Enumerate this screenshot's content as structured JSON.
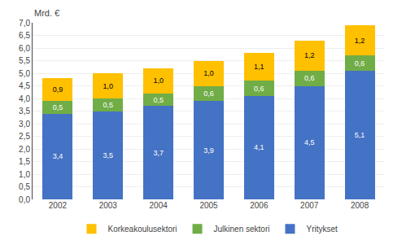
{
  "chart_data": {
    "type": "bar",
    "stacked": true,
    "ylabel": "Mrd. €",
    "categories": [
      "2002",
      "2003",
      "2004",
      "2005",
      "2006",
      "2007",
      "2008"
    ],
    "series": [
      {
        "name": "Yritykset",
        "color": "#4472C4",
        "values": [
          3.4,
          3.5,
          3.7,
          3.9,
          4.1,
          4.5,
          5.1
        ],
        "value_labels": [
          "3,4",
          "3,5",
          "3,7",
          "3,9",
          "4,1",
          "4,5",
          "5,1"
        ]
      },
      {
        "name": "Julkinen sektori",
        "color": "#70AD47",
        "values": [
          0.5,
          0.5,
          0.5,
          0.6,
          0.6,
          0.6,
          0.6
        ],
        "value_labels": [
          "0,5",
          "0,5",
          "0,5",
          "0,6",
          "0,6",
          "0,6",
          "0,6"
        ]
      },
      {
        "name": "Korkeakoulusektori",
        "color": "#FFC000",
        "values": [
          0.9,
          1.0,
          1.0,
          1.0,
          1.1,
          1.2,
          1.2
        ],
        "value_labels": [
          "0,9",
          "1,0",
          "1,0",
          "1,0",
          "1,1",
          "1,2",
          "1,2"
        ]
      }
    ],
    "data_labels": true,
    "ylim": [
      0,
      7.0
    ],
    "yticks": [
      {
        "value": 0.0,
        "label": "0,0"
      },
      {
        "value": 0.5,
        "label": "0,5"
      },
      {
        "value": 1.0,
        "label": "1,0"
      },
      {
        "value": 1.5,
        "label": "1,5"
      },
      {
        "value": 2.0,
        "label": "2,0"
      },
      {
        "value": 2.5,
        "label": "2,5"
      },
      {
        "value": 3.0,
        "label": "3,0"
      },
      {
        "value": 3.5,
        "label": "3,5"
      },
      {
        "value": 4.0,
        "label": "4,0"
      },
      {
        "value": 4.5,
        "label": "4,5"
      },
      {
        "value": 5.0,
        "label": "5,0"
      },
      {
        "value": 5.5,
        "label": "5,5"
      },
      {
        "value": 6.0,
        "label": "6,0"
      },
      {
        "value": 6.5,
        "label": "6,5"
      },
      {
        "value": 7.0,
        "label": "7,0"
      }
    ],
    "grid": true,
    "legend": "bottom"
  }
}
